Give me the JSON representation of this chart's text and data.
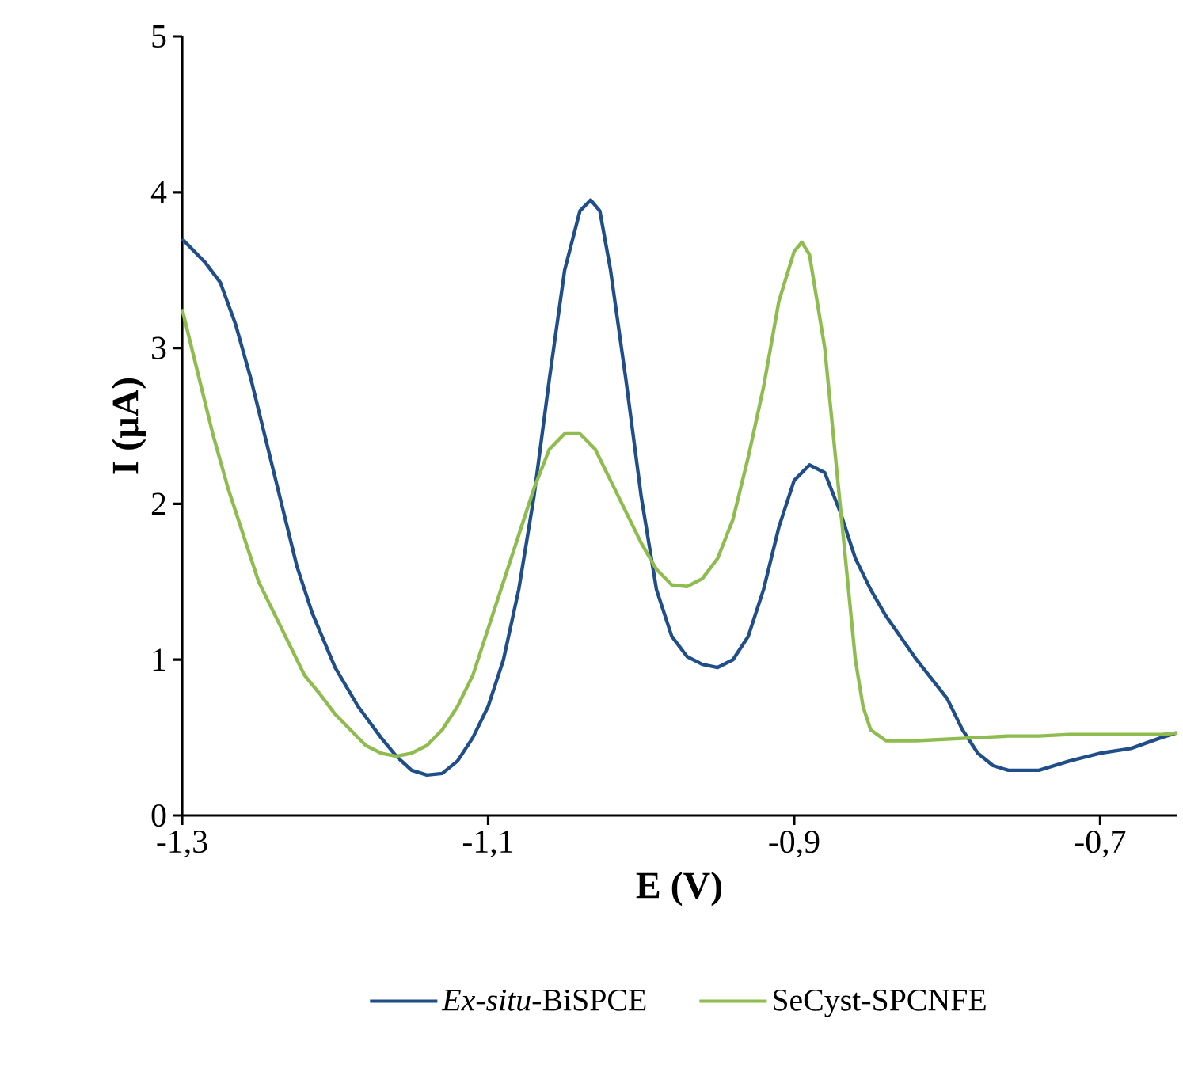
{
  "chart_data": {
    "type": "line",
    "xlabel": "E (V)",
    "ylabel": "I (µA)",
    "xlim": [
      -1.3,
      -0.65
    ],
    "ylim": [
      0,
      5
    ],
    "xticks": [
      {
        "value": -1.3,
        "label": "-1,3"
      },
      {
        "value": -1.1,
        "label": "-1,1"
      },
      {
        "value": -0.9,
        "label": "-0,9"
      },
      {
        "value": -0.7,
        "label": "-0,7"
      }
    ],
    "yticks": [
      0,
      1,
      2,
      3,
      4,
      5
    ],
    "grid": false,
    "legend": "bottom",
    "marker": "none",
    "line_style": "solid",
    "series": [
      {
        "name": "*Ex-situ*-BiSPCE",
        "color": "#1f4e89",
        "x": [
          -1.3,
          -1.285,
          -1.275,
          -1.265,
          -1.255,
          -1.245,
          -1.235,
          -1.225,
          -1.215,
          -1.2,
          -1.185,
          -1.17,
          -1.16,
          -1.15,
          -1.14,
          -1.13,
          -1.12,
          -1.11,
          -1.1,
          -1.09,
          -1.08,
          -1.07,
          -1.06,
          -1.05,
          -1.04,
          -1.033,
          -1.027,
          -1.02,
          -1.01,
          -1.0,
          -0.99,
          -0.98,
          -0.97,
          -0.96,
          -0.95,
          -0.94,
          -0.93,
          -0.92,
          -0.91,
          -0.9,
          -0.89,
          -0.88,
          -0.87,
          -0.86,
          -0.85,
          -0.84,
          -0.82,
          -0.8,
          -0.79,
          -0.78,
          -0.77,
          -0.76,
          -0.74,
          -0.72,
          -0.7,
          -0.68,
          -0.66,
          -0.65
        ],
        "values": [
          3.7,
          3.55,
          3.42,
          3.15,
          2.8,
          2.4,
          2.0,
          1.6,
          1.3,
          0.95,
          0.7,
          0.5,
          0.38,
          0.29,
          0.26,
          0.27,
          0.35,
          0.5,
          0.7,
          1.0,
          1.45,
          2.05,
          2.8,
          3.5,
          3.88,
          3.95,
          3.88,
          3.5,
          2.8,
          2.05,
          1.45,
          1.15,
          1.02,
          0.97,
          0.95,
          1.0,
          1.15,
          1.45,
          1.85,
          2.15,
          2.25,
          2.2,
          1.95,
          1.65,
          1.45,
          1.28,
          1.0,
          0.75,
          0.55,
          0.4,
          0.32,
          0.29,
          0.29,
          0.35,
          0.4,
          0.43,
          0.5,
          0.53
        ]
      },
      {
        "name": "SeCyst-SPCNFE",
        "color": "#8fbc4f",
        "x": [
          -1.3,
          -1.29,
          -1.28,
          -1.27,
          -1.26,
          -1.25,
          -1.24,
          -1.23,
          -1.22,
          -1.21,
          -1.2,
          -1.19,
          -1.18,
          -1.17,
          -1.16,
          -1.15,
          -1.14,
          -1.13,
          -1.12,
          -1.11,
          -1.1,
          -1.09,
          -1.08,
          -1.07,
          -1.06,
          -1.05,
          -1.04,
          -1.03,
          -1.02,
          -1.01,
          -1.0,
          -0.99,
          -0.98,
          -0.97,
          -0.96,
          -0.95,
          -0.94,
          -0.93,
          -0.92,
          -0.91,
          -0.9,
          -0.895,
          -0.89,
          -0.88,
          -0.87,
          -0.86,
          -0.855,
          -0.85,
          -0.84,
          -0.82,
          -0.8,
          -0.78,
          -0.76,
          -0.74,
          -0.72,
          -0.7,
          -0.68,
          -0.66,
          -0.65
        ],
        "values": [
          3.25,
          2.85,
          2.45,
          2.1,
          1.8,
          1.5,
          1.3,
          1.1,
          0.9,
          0.78,
          0.65,
          0.55,
          0.45,
          0.4,
          0.38,
          0.4,
          0.45,
          0.55,
          0.7,
          0.9,
          1.2,
          1.5,
          1.8,
          2.1,
          2.35,
          2.45,
          2.45,
          2.35,
          2.15,
          1.95,
          1.75,
          1.58,
          1.48,
          1.47,
          1.52,
          1.65,
          1.9,
          2.3,
          2.75,
          3.3,
          3.62,
          3.68,
          3.6,
          3.0,
          2.0,
          1.0,
          0.7,
          0.55,
          0.48,
          0.48,
          0.49,
          0.5,
          0.51,
          0.51,
          0.52,
          0.52,
          0.52,
          0.52,
          0.53
        ]
      }
    ]
  }
}
